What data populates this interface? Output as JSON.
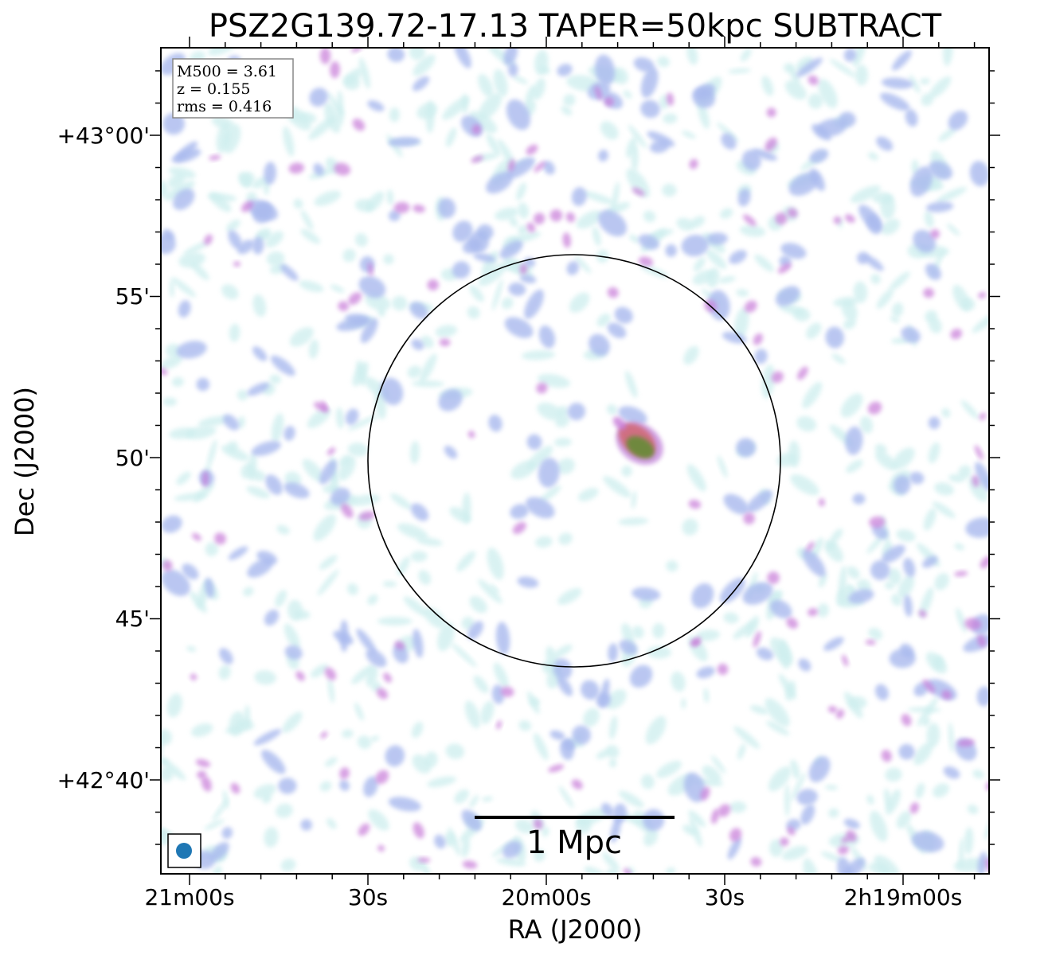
{
  "chart_data": {
    "type": "heatmap",
    "title": "PSZ2G139.72-17.13 TAPER=50kpc SUBTRACT",
    "xlabel": "RA (J2000)",
    "ylabel": "Dec (J2000)",
    "x_ticks": [
      "21m00s",
      "30s",
      "20m00s",
      "30s",
      "2h19m00s"
    ],
    "y_ticks": [
      "+43°00'",
      "55'",
      "50'",
      "45'",
      "+42°40'"
    ],
    "info_box": {
      "lines": [
        "M500 = 3.61",
        "z = 0.155",
        "rms = 0.416"
      ],
      "placement": "top-left"
    },
    "scale_bar": {
      "label": "1 Mpc",
      "placement": "bottom-center"
    },
    "beam": {
      "color": "#1f77b4",
      "placement": "bottom-left"
    },
    "circle": {
      "color": "#000000"
    },
    "grid": false,
    "colors": {
      "low": "#cdeeee",
      "mid": "#a9b9ee",
      "high": "#c77ad8",
      "peak": "#6b8a3a"
    }
  }
}
